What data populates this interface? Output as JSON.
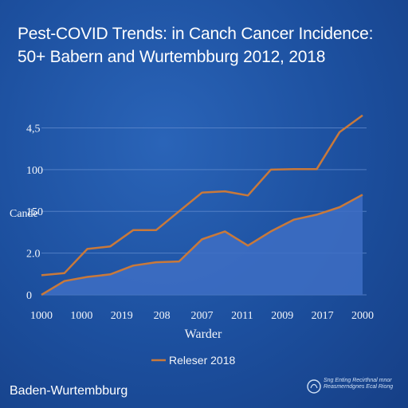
{
  "chart_data": {
    "type": "line",
    "title": "Pest-COVID Trends: in Canch Cancer Incidence: 50+ Babern and Wurtembburg 2012, 2018",
    "xlabel": "Warder",
    "ylabel": "Cande",
    "x_tick_labels": [
      "1000",
      "1000",
      "2019",
      "208",
      "2007",
      "2011",
      "2009",
      "2017",
      "2000"
    ],
    "y_tick_labels": [
      "4,5",
      "100",
      "150",
      "2.0",
      "0"
    ],
    "y_tick_values": [
      4,
      3,
      2,
      1,
      0
    ],
    "ylim": [
      0,
      4.2
    ],
    "grid": true,
    "legend_position": "bottom-center",
    "series": [
      {
        "name": "Releser 2018",
        "color": "#c9793a",
        "values": [
          0.47,
          0.52,
          1.1,
          1.16,
          1.55,
          1.55,
          2.0,
          2.45,
          2.48,
          2.38,
          3.0,
          3.01,
          3.01,
          3.9,
          4.3
        ]
      },
      {
        "name": "",
        "color": "#c9793a",
        "fill": "#3e6fc4",
        "values": [
          0.0,
          0.33,
          0.43,
          0.49,
          0.7,
          0.78,
          0.8,
          1.33,
          1.52,
          1.18,
          1.52,
          1.8,
          1.92,
          2.1,
          2.4
        ]
      }
    ],
    "footer_label": "Baden-Wurtembburg"
  },
  "logo": {
    "icon": "seal-icon",
    "text": "Sng Enting Recirthnal mnor Reasmerndgnes Ecal Riong"
  }
}
